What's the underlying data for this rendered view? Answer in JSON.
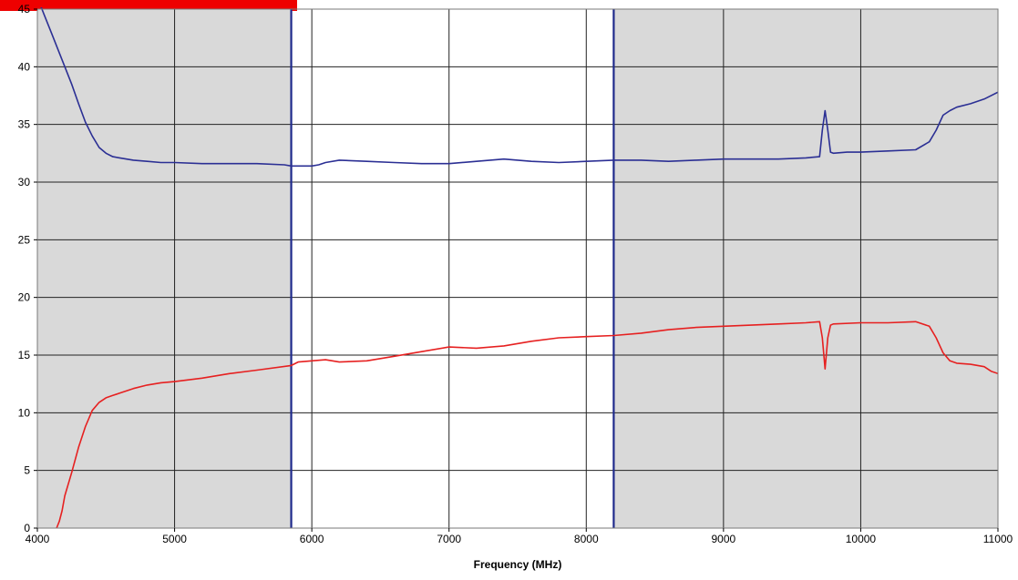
{
  "chart_data": {
    "type": "line",
    "title": "",
    "xlabel": "Frequency (MHz)",
    "ylabel": "",
    "xlim": [
      4000,
      11000
    ],
    "ylim": [
      0,
      45
    ],
    "x_ticks": [
      4000,
      5000,
      6000,
      7000,
      8000,
      9000,
      10000,
      11000
    ],
    "y_ticks": [
      0,
      5,
      10,
      15,
      20,
      25,
      30,
      35,
      40,
      45
    ],
    "grid": true,
    "legend": "none",
    "shaded_bands": [
      {
        "from": 4000,
        "to": 5850,
        "color": "#d9d9d9"
      },
      {
        "from": 8200,
        "to": 11000,
        "color": "#d9d9d9"
      }
    ],
    "markers": [
      {
        "x": 5850,
        "color": "#1f2a8c"
      },
      {
        "x": 8200,
        "color": "#1f2a8c"
      }
    ],
    "series": [
      {
        "color": "#2b2f94",
        "x": [
          4000,
          4050,
          4100,
          4150,
          4200,
          4250,
          4300,
          4350,
          4400,
          4450,
          4500,
          4550,
          4600,
          4700,
          4800,
          4900,
          5000,
          5200,
          5400,
          5600,
          5800,
          5850,
          5900,
          6000,
          6050,
          6100,
          6200,
          6400,
          6600,
          6800,
          7000,
          7200,
          7400,
          7600,
          7800,
          8000,
          8200,
          8400,
          8600,
          8800,
          9000,
          9200,
          9400,
          9600,
          9700,
          9720,
          9740,
          9760,
          9780,
          9800,
          9900,
          10000,
          10200,
          10400,
          10500,
          10550,
          10600,
          10650,
          10700,
          10800,
          10900,
          11000
        ],
        "y": [
          46,
          44.5,
          43,
          41.5,
          40,
          38.5,
          36.8,
          35.2,
          34,
          33,
          32.5,
          32.2,
          32.1,
          31.9,
          31.8,
          31.7,
          31.7,
          31.6,
          31.6,
          31.6,
          31.5,
          31.4,
          31.4,
          31.4,
          31.5,
          31.7,
          31.9,
          31.8,
          31.7,
          31.6,
          31.6,
          31.8,
          32.0,
          31.8,
          31.7,
          31.8,
          31.9,
          31.9,
          31.8,
          31.9,
          32.0,
          32.0,
          32.0,
          32.1,
          32.2,
          34.5,
          36.2,
          34.5,
          32.6,
          32.5,
          32.6,
          32.6,
          32.7,
          32.8,
          33.5,
          34.5,
          35.8,
          36.2,
          36.5,
          36.8,
          37.2,
          37.8
        ]
      },
      {
        "color": "#e62020",
        "x": [
          4140,
          4160,
          4180,
          4200,
          4250,
          4300,
          4350,
          4400,
          4450,
          4500,
          4550,
          4600,
          4700,
          4800,
          4900,
          5000,
          5200,
          5400,
          5600,
          5850,
          5900,
          6000,
          6100,
          6200,
          6400,
          6600,
          6800,
          7000,
          7200,
          7400,
          7600,
          7800,
          8000,
          8200,
          8400,
          8600,
          8800,
          9000,
          9200,
          9400,
          9600,
          9700,
          9720,
          9740,
          9760,
          9780,
          9800,
          10000,
          10200,
          10400,
          10500,
          10550,
          10600,
          10650,
          10700,
          10800,
          10900,
          10950,
          11000
        ],
        "y": [
          0,
          0.6,
          1.5,
          2.8,
          4.8,
          7.0,
          8.8,
          10.2,
          10.9,
          11.3,
          11.5,
          11.7,
          12.1,
          12.4,
          12.6,
          12.7,
          13.0,
          13.4,
          13.7,
          14.1,
          14.4,
          14.5,
          14.6,
          14.4,
          14.5,
          14.9,
          15.3,
          15.7,
          15.6,
          15.8,
          16.2,
          16.5,
          16.6,
          16.7,
          16.9,
          17.2,
          17.4,
          17.5,
          17.6,
          17.7,
          17.8,
          17.9,
          16.5,
          13.8,
          16.5,
          17.6,
          17.7,
          17.8,
          17.8,
          17.9,
          17.5,
          16.5,
          15.2,
          14.5,
          14.3,
          14.2,
          14.0,
          13.6,
          13.4
        ]
      }
    ]
  }
}
